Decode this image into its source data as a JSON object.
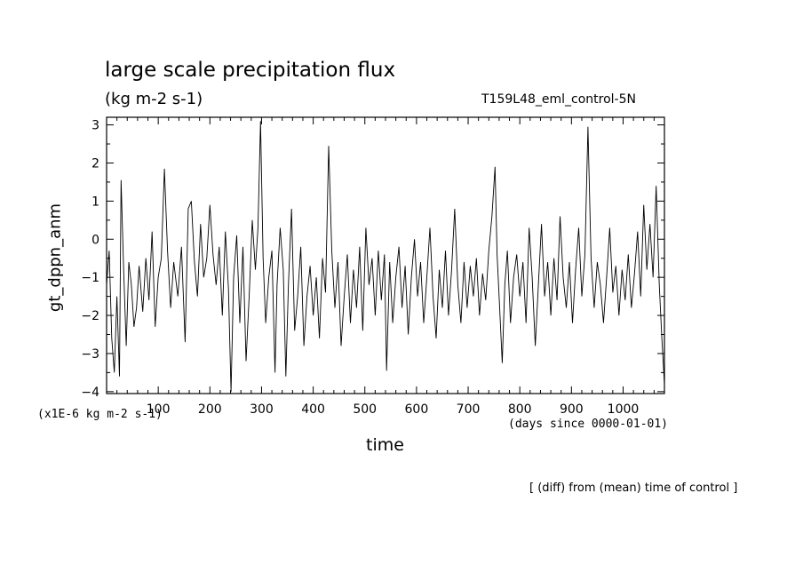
{
  "chart_data": {
    "type": "line",
    "title": "large scale precipitation flux",
    "units": "(kg m-2 s-1)",
    "run_label": "T159L48_eml_control-5N",
    "ylabel": "gt_dppn_anm",
    "y_scale_note": "(x1E-6 kg m-2 s-1)",
    "xlabel": "time",
    "x_unit_note": "(days since 0000-01-01)",
    "footnote": "[ (diff) from (mean) time of control ]",
    "xlim": [
      0,
      1080
    ],
    "ylim": [
      -4.05,
      3.2
    ],
    "x_ticks": [
      100,
      200,
      300,
      400,
      500,
      600,
      700,
      800,
      900,
      1000
    ],
    "x_tick_labels": [
      "100",
      "200",
      "300",
      "400",
      "500",
      "600",
      "700",
      "800",
      "900",
      "1000"
    ],
    "y_ticks": [
      -4,
      -3,
      -2,
      -1,
      0,
      1,
      2,
      3
    ],
    "y_tick_labels": [
      "−4",
      "−3",
      "−2",
      "−1",
      "0",
      "1",
      "2",
      "3"
    ],
    "grid": false,
    "series": [
      {
        "values": [
          [
            0,
            -1.2
          ],
          [
            5,
            -0.3
          ],
          [
            10,
            -2.6
          ],
          [
            15,
            -3.5
          ],
          [
            20,
            -1.5
          ],
          [
            25,
            -3.6
          ],
          [
            28,
            1.55
          ],
          [
            33,
            -0.8
          ],
          [
            38,
            -2.8
          ],
          [
            43,
            -0.6
          ],
          [
            48,
            -1.2
          ],
          [
            53,
            -2.3
          ],
          [
            58,
            -1.8
          ],
          [
            63,
            -0.7
          ],
          [
            70,
            -1.9
          ],
          [
            76,
            -0.5
          ],
          [
            82,
            -1.6
          ],
          [
            88,
            0.2
          ],
          [
            94,
            -2.3
          ],
          [
            100,
            -1.0
          ],
          [
            106,
            -0.5
          ],
          [
            112,
            1.85
          ],
          [
            118,
            -0.3
          ],
          [
            124,
            -1.8
          ],
          [
            130,
            -0.6
          ],
          [
            138,
            -1.5
          ],
          [
            145,
            -0.2
          ],
          [
            152,
            -2.7
          ],
          [
            158,
            0.8
          ],
          [
            164,
            1.0
          ],
          [
            170,
            -0.6
          ],
          [
            176,
            -1.5
          ],
          [
            182,
            0.4
          ],
          [
            188,
            -1.0
          ],
          [
            194,
            -0.5
          ],
          [
            200,
            0.9
          ],
          [
            206,
            -0.4
          ],
          [
            212,
            -1.2
          ],
          [
            218,
            -0.2
          ],
          [
            224,
            -2.0
          ],
          [
            230,
            0.2
          ],
          [
            236,
            -1.3
          ],
          [
            241,
            -4.0
          ],
          [
            246,
            -1.0
          ],
          [
            252,
            0.1
          ],
          [
            258,
            -2.2
          ],
          [
            264,
            -0.2
          ],
          [
            270,
            -3.2
          ],
          [
            276,
            -1.5
          ],
          [
            282,
            0.5
          ],
          [
            288,
            -0.8
          ],
          [
            293,
            0.3
          ],
          [
            298,
            3.1
          ],
          [
            303,
            -0.5
          ],
          [
            308,
            -2.2
          ],
          [
            314,
            -1.0
          ],
          [
            320,
            -0.3
          ],
          [
            326,
            -3.5
          ],
          [
            330,
            -1.2
          ],
          [
            336,
            0.3
          ],
          [
            342,
            -0.8
          ],
          [
            347,
            -3.6
          ],
          [
            352,
            -1.2
          ],
          [
            358,
            0.8
          ],
          [
            364,
            -2.4
          ],
          [
            370,
            -1.5
          ],
          [
            376,
            -0.2
          ],
          [
            382,
            -2.8
          ],
          [
            388,
            -1.5
          ],
          [
            394,
            -0.7
          ],
          [
            400,
            -2.0
          ],
          [
            406,
            -1.0
          ],
          [
            412,
            -2.6
          ],
          [
            418,
            -0.5
          ],
          [
            424,
            -1.4
          ],
          [
            430,
            2.45
          ],
          [
            436,
            -0.3
          ],
          [
            442,
            -1.8
          ],
          [
            448,
            -0.6
          ],
          [
            454,
            -2.8
          ],
          [
            460,
            -1.5
          ],
          [
            466,
            -0.4
          ],
          [
            472,
            -2.2
          ],
          [
            478,
            -0.8
          ],
          [
            484,
            -1.8
          ],
          [
            490,
            -0.2
          ],
          [
            496,
            -2.4
          ],
          [
            502,
            0.3
          ],
          [
            508,
            -1.2
          ],
          [
            514,
            -0.5
          ],
          [
            520,
            -2.0
          ],
          [
            526,
            -0.3
          ],
          [
            532,
            -1.6
          ],
          [
            538,
            -0.4
          ],
          [
            542,
            -3.45
          ],
          [
            548,
            -0.6
          ],
          [
            554,
            -2.2
          ],
          [
            560,
            -1.0
          ],
          [
            566,
            -0.2
          ],
          [
            572,
            -1.8
          ],
          [
            578,
            -0.7
          ],
          [
            584,
            -2.5
          ],
          [
            590,
            -1.0
          ],
          [
            596,
            0.0
          ],
          [
            602,
            -1.5
          ],
          [
            608,
            -0.6
          ],
          [
            614,
            -2.2
          ],
          [
            620,
            -1.0
          ],
          [
            626,
            0.3
          ],
          [
            632,
            -1.5
          ],
          [
            638,
            -2.6
          ],
          [
            644,
            -0.8
          ],
          [
            650,
            -1.8
          ],
          [
            656,
            -0.3
          ],
          [
            662,
            -2.0
          ],
          [
            668,
            -0.8
          ],
          [
            674,
            0.8
          ],
          [
            680,
            -1.2
          ],
          [
            686,
            -2.2
          ],
          [
            692,
            -0.6
          ],
          [
            698,
            -1.8
          ],
          [
            704,
            -0.7
          ],
          [
            710,
            -1.5
          ],
          [
            716,
            -0.5
          ],
          [
            722,
            -2.0
          ],
          [
            728,
            -0.9
          ],
          [
            734,
            -1.6
          ],
          [
            740,
            -0.3
          ],
          [
            746,
            0.6
          ],
          [
            752,
            1.9
          ],
          [
            756,
            -0.4
          ],
          [
            761,
            -1.8
          ],
          [
            766,
            -3.25
          ],
          [
            771,
            -1.2
          ],
          [
            776,
            -0.3
          ],
          [
            782,
            -2.2
          ],
          [
            788,
            -1.0
          ],
          [
            794,
            -0.4
          ],
          [
            800,
            -1.5
          ],
          [
            806,
            -0.6
          ],
          [
            812,
            -2.2
          ],
          [
            818,
            0.3
          ],
          [
            824,
            -1.0
          ],
          [
            830,
            -2.8
          ],
          [
            836,
            -1.2
          ],
          [
            842,
            0.4
          ],
          [
            848,
            -1.5
          ],
          [
            854,
            -0.6
          ],
          [
            860,
            -2.0
          ],
          [
            866,
            -0.5
          ],
          [
            872,
            -1.6
          ],
          [
            878,
            0.6
          ],
          [
            884,
            -1.0
          ],
          [
            890,
            -1.8
          ],
          [
            896,
            -0.6
          ],
          [
            902,
            -2.2
          ],
          [
            908,
            -0.8
          ],
          [
            914,
            0.3
          ],
          [
            920,
            -1.5
          ],
          [
            926,
            -0.4
          ],
          [
            932,
            2.95
          ],
          [
            938,
            -0.5
          ],
          [
            944,
            -1.8
          ],
          [
            950,
            -0.6
          ],
          [
            956,
            -1.2
          ],
          [
            962,
            -2.2
          ],
          [
            968,
            -1.0
          ],
          [
            974,
            0.3
          ],
          [
            980,
            -1.4
          ],
          [
            986,
            -0.7
          ],
          [
            992,
            -2.0
          ],
          [
            998,
            -0.8
          ],
          [
            1004,
            -1.6
          ],
          [
            1010,
            -0.4
          ],
          [
            1016,
            -1.8
          ],
          [
            1022,
            -0.9
          ],
          [
            1028,
            0.2
          ],
          [
            1034,
            -1.5
          ],
          [
            1040,
            0.9
          ],
          [
            1046,
            -0.8
          ],
          [
            1052,
            0.4
          ],
          [
            1058,
            -1.0
          ],
          [
            1064,
            1.4
          ],
          [
            1070,
            -1.2
          ],
          [
            1075,
            -2.6
          ],
          [
            1080,
            -3.8
          ]
        ]
      }
    ]
  }
}
